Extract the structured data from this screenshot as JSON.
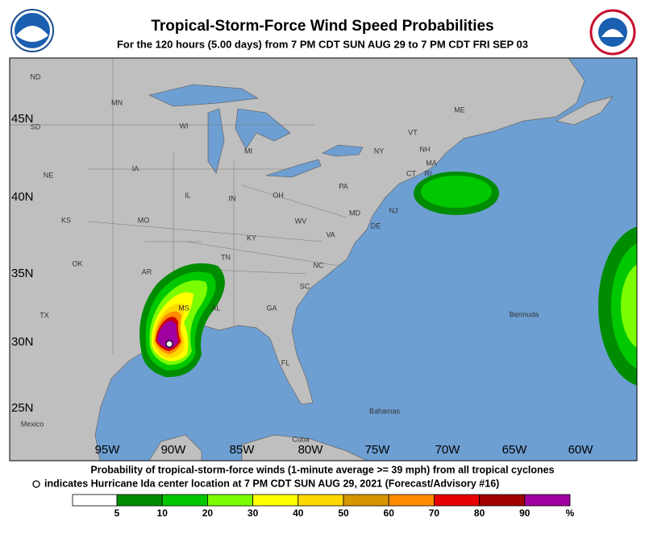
{
  "header": {
    "title": "Tropical-Storm-Force Wind Speed Probabilities",
    "subtitle": "For the 120 hours (5.00 days) from 7 PM CDT SUN AUG 29 to 7 PM CDT FRI SEP 03"
  },
  "map": {
    "lat_labels": [
      "45N",
      "40N",
      "35N",
      "30N",
      "25N"
    ],
    "lon_labels": [
      "95W",
      "90W",
      "85W",
      "80W",
      "75W",
      "70W",
      "65W",
      "60W"
    ],
    "place_labels": [
      "ND",
      "SD",
      "MN",
      "WI",
      "MI",
      "NE",
      "IA",
      "IL",
      "IN",
      "OH",
      "PA",
      "NY",
      "VT",
      "NH",
      "ME",
      "MA",
      "CT",
      "RI",
      "NJ",
      "MD",
      "DE",
      "KS",
      "MO",
      "KY",
      "WV",
      "VA",
      "OK",
      "AR",
      "TN",
      "NC",
      "SC",
      "TX",
      "MS",
      "AL",
      "GA",
      "FL",
      "Mexico",
      "Cuba",
      "Bahamas",
      "Bermuda"
    ]
  },
  "legend": {
    "line1": "Probability of tropical-storm-force winds (1-minute average >= 39 mph) from all tropical cyclones",
    "line2": "indicates Hurricane Ida center location at 7 PM CDT SUN AUG 29, 2021 (Forecast/Advisory #16)",
    "levels": [
      5,
      10,
      20,
      30,
      40,
      50,
      60,
      70,
      80,
      90
    ],
    "unit": "%",
    "colors": [
      "#ffffff",
      "#008c00",
      "#00c800",
      "#7cfc00",
      "#ffff00",
      "#ffd700",
      "#d69600",
      "#ff8c00",
      "#e60000",
      "#a00000",
      "#a000a0"
    ]
  }
}
